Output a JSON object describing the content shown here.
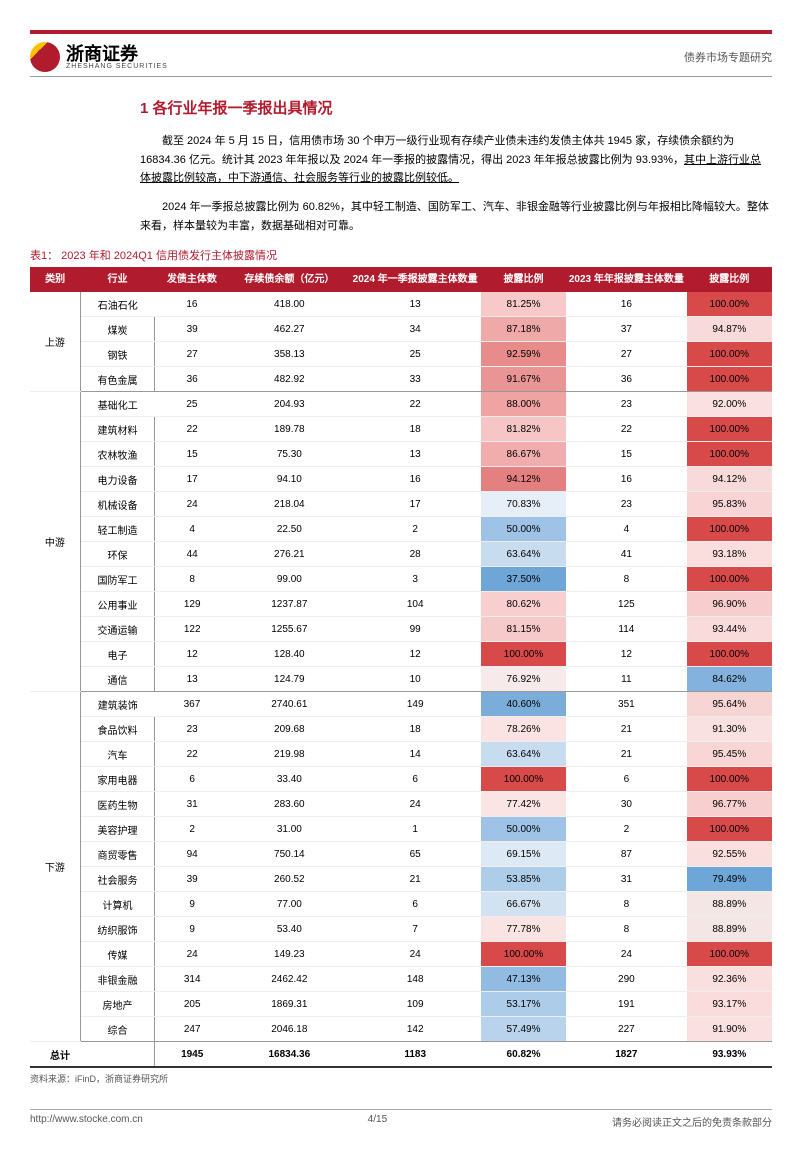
{
  "header": {
    "logo_cn": "浙商证券",
    "logo_en": "ZHESHANG SECURITIES",
    "right": "债券市场专题研究"
  },
  "section_title": "1 各行业年报一季报出具情况",
  "paragraphs": [
    {
      "text": "截至 2024 年 5 月 15 日，信用债市场 30 个申万一级行业现有存续产业债未违约发债主体共 1945 家，存续债余额约为 16834.36 亿元。统计其 2023 年年报以及 2024 年一季报的披露情况，得出 2023 年年报总披露比例为 93.93%，",
      "tail_underlined": "其中上游行业总体披露比例较高，中下游通信、社会服务等行业的披露比例较低。"
    },
    {
      "text": "2024 年一季报总披露比例为 60.82%，其中轻工制造、国防军工、汽车、非银金融等行业披露比例与年报相比降幅较大。整体来看，样本量较为丰富，数据基础相对可靠。"
    }
  ],
  "table_caption": "表1：  2023 年和 2024Q1 信用债发行主体披露情况",
  "columns": [
    "类别",
    "行业",
    "发债主体数",
    "存续债余额（亿元）",
    "2024 年一季报披露主体数量",
    "披露比例",
    "2023 年年报披露主体数量",
    "披露比例"
  ],
  "col_widths": [
    "46px",
    "68px",
    "68px",
    "110px",
    "120px",
    "78px",
    "110px",
    "78px"
  ],
  "groups": [
    {
      "cat": "上游",
      "rows": [
        {
          "ind": "石油石化",
          "n": "16",
          "amt": "418.00",
          "q1n": "13",
          "q1r": "81.25%",
          "q1c": "#f7c9c9",
          "arn": "16",
          "arr": "100.00%",
          "arc": "#d84a4a"
        },
        {
          "ind": "煤炭",
          "n": "39",
          "amt": "462.27",
          "q1n": "34",
          "q1r": "87.18%",
          "q1c": "#f0a9a9",
          "arn": "37",
          "arr": "94.87%",
          "arc": "#f9dada"
        },
        {
          "ind": "钢铁",
          "n": "27",
          "amt": "358.13",
          "q1n": "25",
          "q1r": "92.59%",
          "q1c": "#e88b8b",
          "arn": "27",
          "arr": "100.00%",
          "arc": "#d84a4a"
        },
        {
          "ind": "有色金属",
          "n": "36",
          "amt": "482.92",
          "q1n": "33",
          "q1r": "91.67%",
          "q1c": "#ea9595",
          "arn": "36",
          "arr": "100.00%",
          "arc": "#d84a4a"
        }
      ]
    },
    {
      "cat": "中游",
      "rows": [
        {
          "ind": "基础化工",
          "n": "25",
          "amt": "204.93",
          "q1n": "22",
          "q1r": "88.00%",
          "q1c": "#efa3a3",
          "arn": "23",
          "arr": "92.00%",
          "arc": "#fae0e0"
        },
        {
          "ind": "建筑材料",
          "n": "22",
          "amt": "189.78",
          "q1n": "18",
          "q1r": "81.82%",
          "q1c": "#f6c5c5",
          "arn": "22",
          "arr": "100.00%",
          "arc": "#d84a4a"
        },
        {
          "ind": "农林牧渔",
          "n": "15",
          "amt": "75.30",
          "q1n": "13",
          "q1r": "86.67%",
          "q1c": "#f1adad",
          "arn": "15",
          "arr": "100.00%",
          "arc": "#d84a4a"
        },
        {
          "ind": "电力设备",
          "n": "17",
          "amt": "94.10",
          "q1n": "16",
          "q1r": "94.12%",
          "q1c": "#e58080",
          "arn": "16",
          "arr": "94.12%",
          "arc": "#f9dada"
        },
        {
          "ind": "机械设备",
          "n": "24",
          "amt": "218.04",
          "q1n": "17",
          "q1r": "70.83%",
          "q1c": "#e6eef7",
          "arn": "23",
          "arr": "95.83%",
          "arc": "#f8d4d4"
        },
        {
          "ind": "轻工制造",
          "n": "4",
          "amt": "22.50",
          "q1n": "2",
          "q1r": "50.00%",
          "q1c": "#9ec3e6",
          "arn": "4",
          "arr": "100.00%",
          "arc": "#d84a4a"
        },
        {
          "ind": "环保",
          "n": "44",
          "amt": "276.21",
          "q1n": "28",
          "q1r": "63.64%",
          "q1c": "#c8dcef",
          "arn": "41",
          "arr": "93.18%",
          "arc": "#fadddd"
        },
        {
          "ind": "国防军工",
          "n": "8",
          "amt": "99.00",
          "q1n": "3",
          "q1r": "37.50%",
          "q1c": "#6ea6d8",
          "arn": "8",
          "arr": "100.00%",
          "arc": "#d84a4a"
        },
        {
          "ind": "公用事业",
          "n": "129",
          "amt": "1237.87",
          "q1n": "104",
          "q1r": "80.62%",
          "q1c": "#f8cece",
          "arn": "125",
          "arr": "96.90%",
          "arc": "#f7cdcd"
        },
        {
          "ind": "交通运输",
          "n": "122",
          "amt": "1255.67",
          "q1n": "99",
          "q1r": "81.15%",
          "q1c": "#f7caca",
          "arn": "114",
          "arr": "93.44%",
          "arc": "#fadbdb"
        },
        {
          "ind": "电子",
          "n": "12",
          "amt": "128.40",
          "q1n": "12",
          "q1r": "100.00%",
          "q1c": "#d84a4a",
          "arn": "12",
          "arr": "100.00%",
          "arc": "#d84a4a"
        },
        {
          "ind": "通信",
          "n": "13",
          "amt": "124.79",
          "q1n": "10",
          "q1r": "76.92%",
          "q1c": "#f6eaea",
          "arn": "11",
          "arr": "84.62%",
          "arc": "#82b2dd"
        }
      ]
    },
    {
      "cat": "下游",
      "rows": [
        {
          "ind": "建筑装饰",
          "n": "367",
          "amt": "2740.61",
          "q1n": "149",
          "q1r": "40.60%",
          "q1c": "#7aadda",
          "arn": "351",
          "arr": "95.64%",
          "arc": "#f8d5d5"
        },
        {
          "ind": "食品饮料",
          "n": "23",
          "amt": "209.68",
          "q1n": "18",
          "q1r": "78.26%",
          "q1c": "#fce3e3",
          "arn": "21",
          "arr": "91.30%",
          "arc": "#fae1e1"
        },
        {
          "ind": "汽车",
          "n": "22",
          "amt": "219.98",
          "q1n": "14",
          "q1r": "63.64%",
          "q1c": "#c8dcef",
          "arn": "21",
          "arr": "95.45%",
          "arc": "#f8d6d6"
        },
        {
          "ind": "家用电器",
          "n": "6",
          "amt": "33.40",
          "q1n": "6",
          "q1r": "100.00%",
          "q1c": "#d84a4a",
          "arn": "6",
          "arr": "100.00%",
          "arc": "#d84a4a"
        },
        {
          "ind": "医药生物",
          "n": "31",
          "amt": "283.60",
          "q1n": "24",
          "q1r": "77.42%",
          "q1c": "#fae4e4",
          "arn": "30",
          "arr": "96.77%",
          "arc": "#f7cfcf"
        },
        {
          "ind": "美容护理",
          "n": "2",
          "amt": "31.00",
          "q1n": "1",
          "q1r": "50.00%",
          "q1c": "#9ec3e6",
          "arn": "2",
          "arr": "100.00%",
          "arc": "#d84a4a"
        },
        {
          "ind": "商贸零售",
          "n": "94",
          "amt": "750.14",
          "q1n": "65",
          "q1r": "69.15%",
          "q1c": "#dde9f4",
          "arn": "87",
          "arr": "92.55%",
          "arc": "#fadfdf"
        },
        {
          "ind": "社会服务",
          "n": "39",
          "amt": "260.52",
          "q1n": "21",
          "q1r": "53.85%",
          "q1c": "#aecde9",
          "arn": "31",
          "arr": "79.49%",
          "arc": "#6ea6d8"
        },
        {
          "ind": "计算机",
          "n": "9",
          "amt": "77.00",
          "q1n": "6",
          "q1r": "66.67%",
          "q1c": "#d2e2f1",
          "arn": "8",
          "arr": "88.89%",
          "arc": "#f5e6e6"
        },
        {
          "ind": "纺织服饰",
          "n": "9",
          "amt": "53.40",
          "q1n": "7",
          "q1r": "77.78%",
          "q1c": "#fae3e3",
          "arn": "8",
          "arr": "88.89%",
          "arc": "#f5e6e6"
        },
        {
          "ind": "传媒",
          "n": "24",
          "amt": "149.23",
          "q1n": "24",
          "q1r": "100.00%",
          "q1c": "#d84a4a",
          "arn": "24",
          "arr": "100.00%",
          "arc": "#d84a4a"
        },
        {
          "ind": "非银金融",
          "n": "314",
          "amt": "2462.42",
          "q1n": "148",
          "q1r": "47.13%",
          "q1c": "#92bbe2",
          "arn": "290",
          "arr": "92.36%",
          "arc": "#fadfdf"
        },
        {
          "ind": "房地产",
          "n": "205",
          "amt": "1869.31",
          "q1n": "109",
          "q1r": "53.17%",
          "q1c": "#adcce9",
          "arn": "191",
          "arr": "93.17%",
          "arc": "#fadcdc"
        },
        {
          "ind": "综合",
          "n": "247",
          "amt": "2046.18",
          "q1n": "142",
          "q1r": "57.49%",
          "q1c": "#b9d3ec",
          "arn": "227",
          "arr": "91.90%",
          "arc": "#fae0e0"
        }
      ]
    }
  ],
  "total_row": {
    "label": "总计",
    "n": "1945",
    "amt": "16834.36",
    "q1n": "1183",
    "q1r": "60.82%",
    "arn": "1827",
    "arr": "93.93%"
  },
  "source": "资料来源：iFinD，浙商证券研究所",
  "footer": {
    "left": "http://www.stocke.com.cn",
    "mid": "4/15",
    "right": "请务必阅读正文之后的免责条款部分"
  }
}
